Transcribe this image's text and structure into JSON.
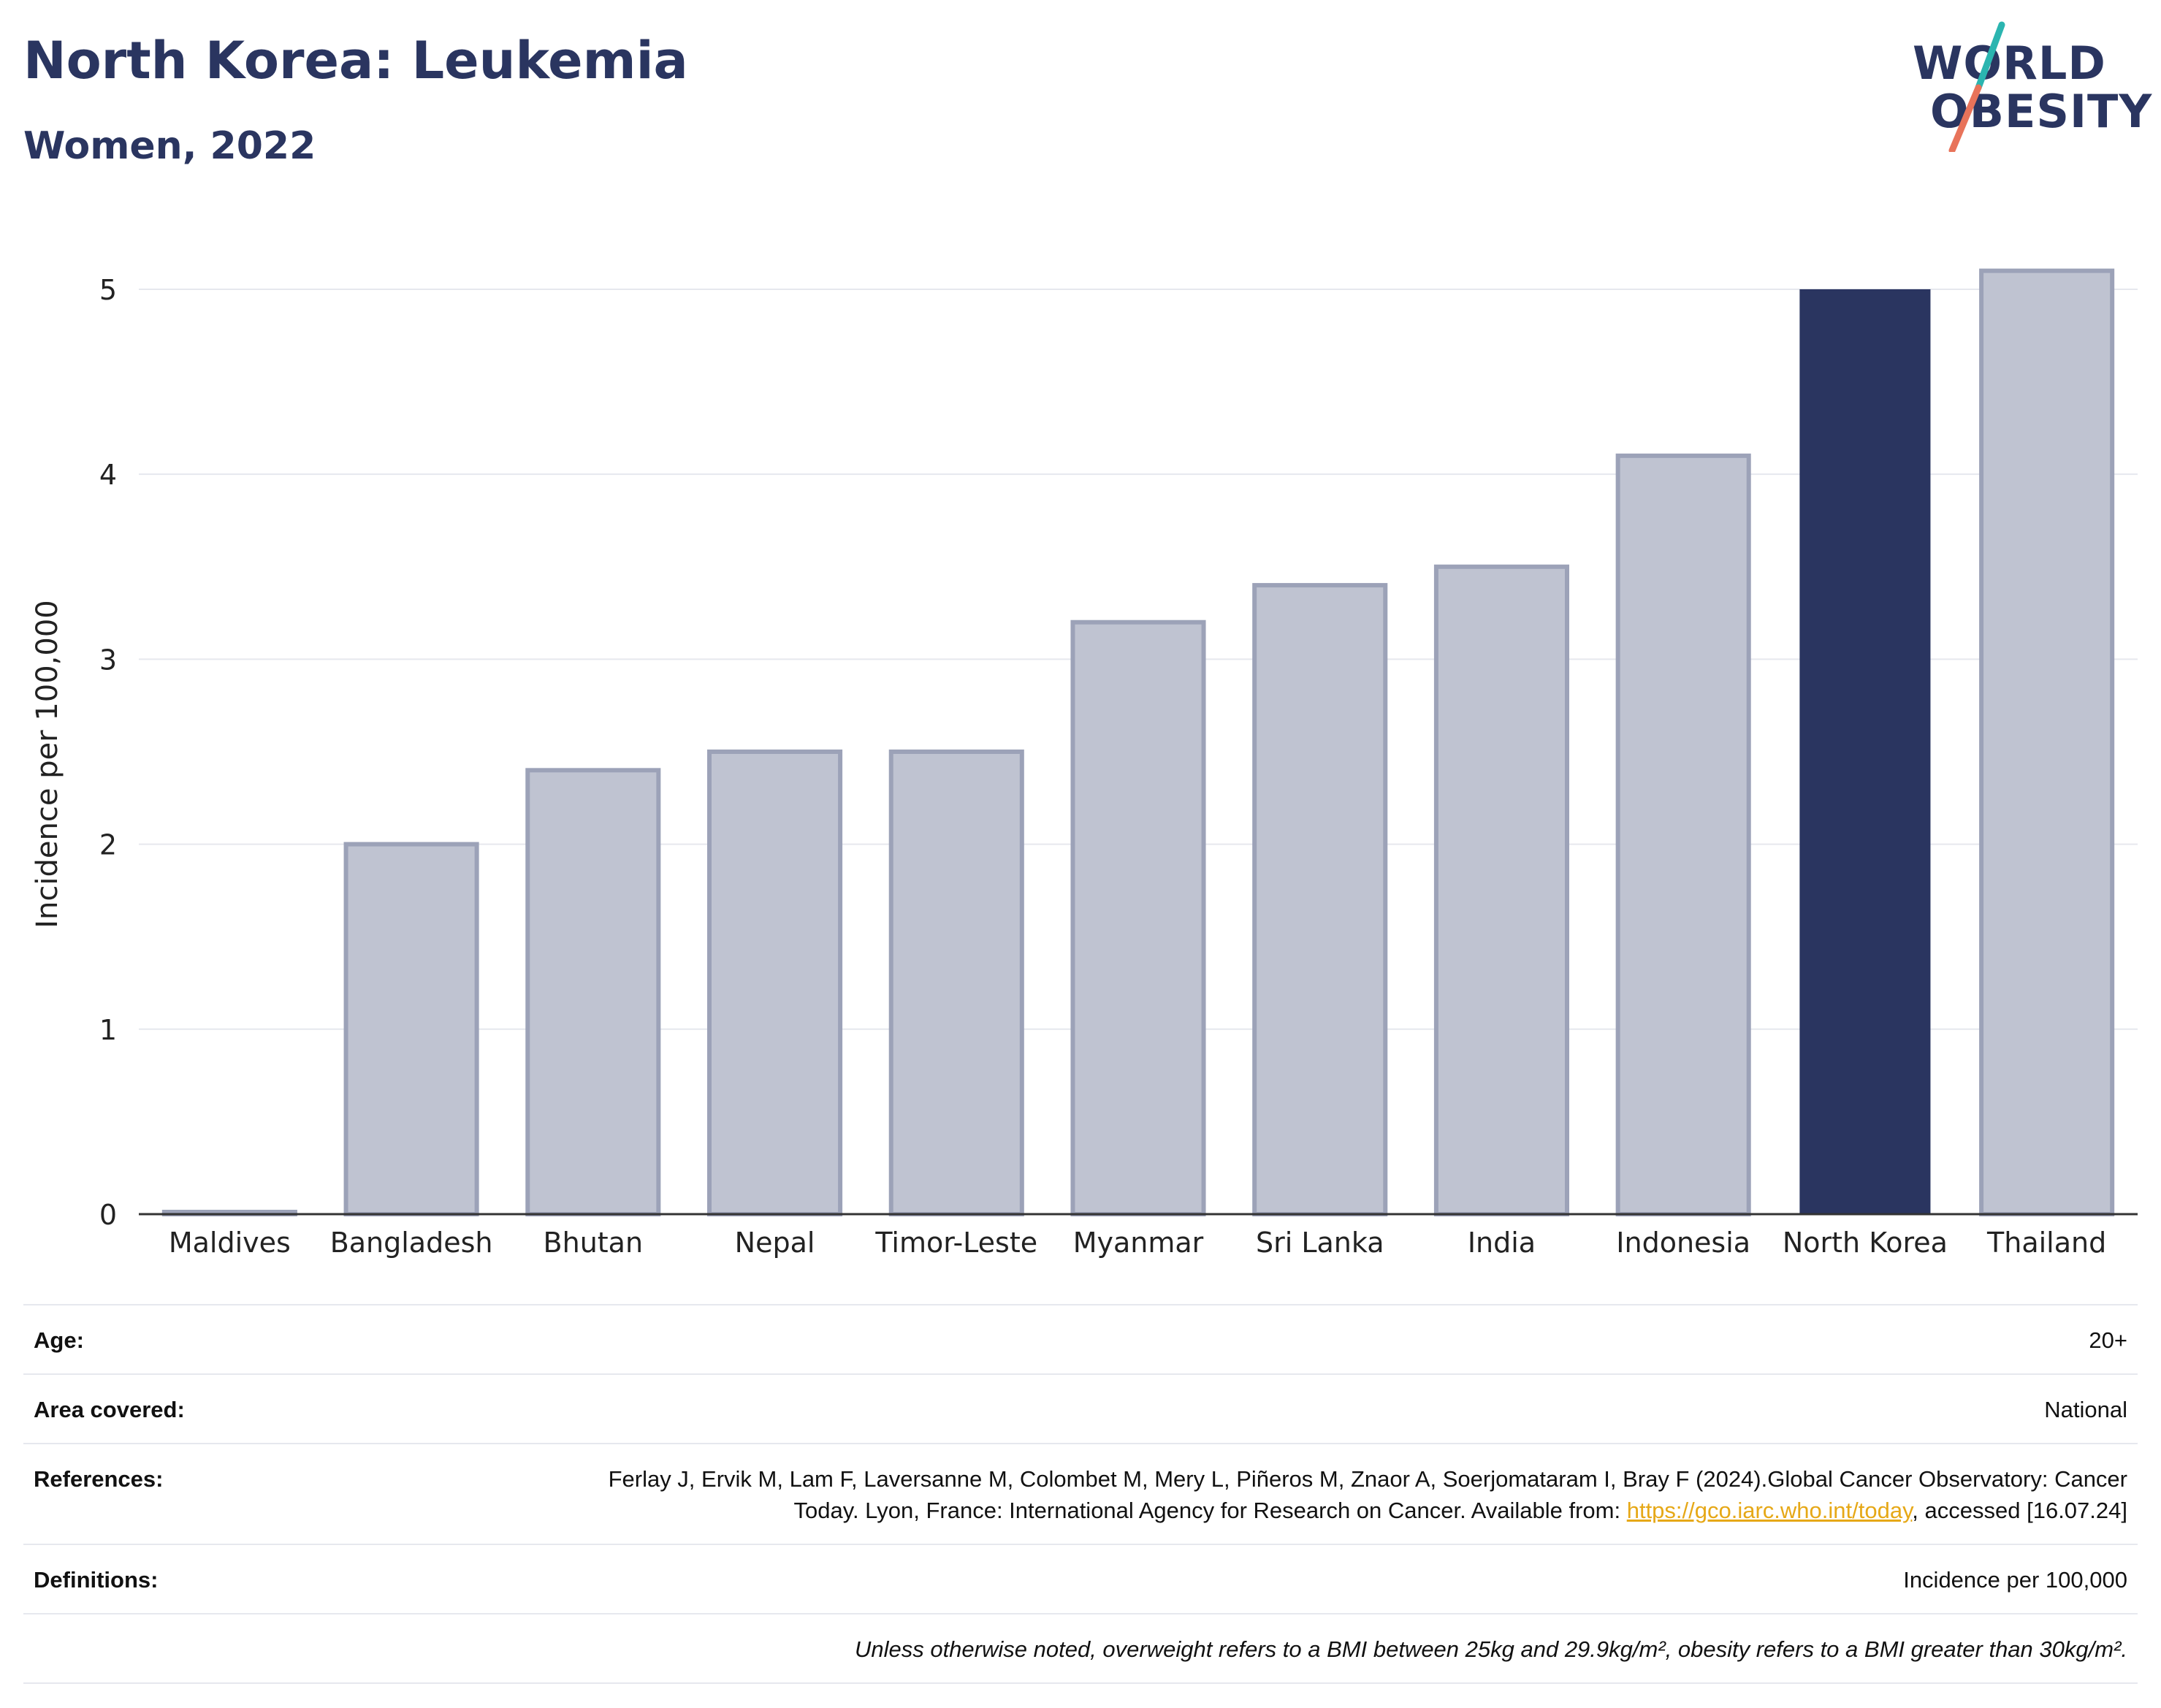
{
  "header": {
    "title": "North Korea: Leukemia",
    "subtitle": "Women, 2022"
  },
  "logo": {
    "line1": "WORLD",
    "line2": "OBESITY",
    "text": "WORLD OBESITY"
  },
  "chart_data": {
    "type": "bar",
    "categories": [
      "Maldives",
      "Bangladesh",
      "Bhutan",
      "Nepal",
      "Timor-Leste",
      "Myanmar",
      "Sri Lanka",
      "India",
      "Indonesia",
      "North Korea",
      "Thailand"
    ],
    "values": [
      0.0,
      2.0,
      2.4,
      2.5,
      2.5,
      3.2,
      3.4,
      3.5,
      4.1,
      5.0,
      5.1
    ],
    "highlight": "North Korea",
    "ylabel": "Incidence per 100,000",
    "xlabel": "",
    "ylim": [
      0,
      5.3
    ],
    "yticks": [
      0,
      1,
      2,
      3,
      4,
      5
    ],
    "grid": true,
    "colors": {
      "bar": "#bfc3d1",
      "bar_edge": "#9ca2b8",
      "highlight": "#2a3560",
      "grid": "#e6e8ee",
      "axis": "#333333"
    }
  },
  "meta": {
    "age_label": "Age:",
    "age_value": "20+",
    "area_label": "Area covered:",
    "area_value": "National",
    "references_label": "References:",
    "references_text_1": "Ferlay J, Ervik M, Lam F, Laversanne M, Colombet M, Mery L, Piñeros M, Znaor A, Soerjomataram I, Bray F (2024).Global Cancer Observatory: Cancer Today. Lyon, France: International Agency for Research on Cancer. Available from: ",
    "references_link": "https://gco.iarc.who.int/today",
    "references_text_2": ", accessed [16.07.24]",
    "definitions_label": "Definitions:",
    "definitions_value": "Incidence per 100,000",
    "note": "Unless otherwise noted, overweight refers to a BMI between 25kg and 29.9kg/m², obesity refers to a BMI greater than 30kg/m²."
  }
}
